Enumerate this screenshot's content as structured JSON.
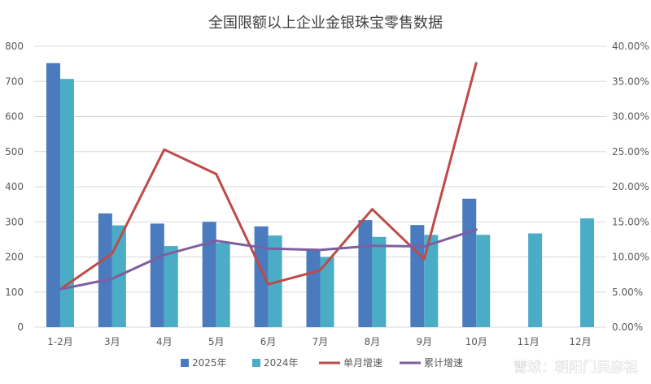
{
  "chart_data": {
    "type": "bar",
    "title": "全国限额以上企业金银珠宝零售数据",
    "categories": [
      "1-2月",
      "3月",
      "4月",
      "5月",
      "6月",
      "7月",
      "8月",
      "9月",
      "10月",
      "11月",
      "12月"
    ],
    "y_left": {
      "min": 0,
      "max": 800,
      "ticks": [
        "0",
        "100",
        "200",
        "300",
        "400",
        "500",
        "600",
        "700",
        "800"
      ]
    },
    "y_right": {
      "min": 0,
      "max": 40,
      "ticks": [
        "0.00%",
        "5.00%",
        "10.00%",
        "15.00%",
        "20.00%",
        "25.00%",
        "30.00%",
        "35.00%",
        "40.00%"
      ]
    },
    "series": [
      {
        "name": "2025年",
        "kind": "bar",
        "axis": "left",
        "color": "#4a7bbf",
        "values": [
          752,
          324,
          295,
          300,
          287,
          222,
          305,
          291,
          366,
          null,
          null
        ]
      },
      {
        "name": "2024年",
        "kind": "bar",
        "axis": "left",
        "color": "#4bacc6",
        "values": [
          707,
          290,
          231,
          240,
          261,
          200,
          257,
          263,
          263,
          267,
          310
        ]
      },
      {
        "name": "单月增速",
        "kind": "line",
        "axis": "right",
        "color": "#be4b48",
        "values": [
          5.4,
          10.5,
          25.3,
          21.8,
          6.1,
          8.1,
          16.8,
          9.7,
          37.6,
          null,
          null
        ]
      },
      {
        "name": "累计增速",
        "kind": "line",
        "axis": "right",
        "color": "#7d5fa0",
        "values": [
          5.4,
          6.9,
          10.3,
          12.3,
          11.2,
          11.0,
          11.6,
          11.5,
          13.9,
          null,
          null
        ]
      }
    ],
    "grid": true,
    "legend_position": "bottom"
  },
  "watermark": "雪球：朝阳门吴彦祖"
}
